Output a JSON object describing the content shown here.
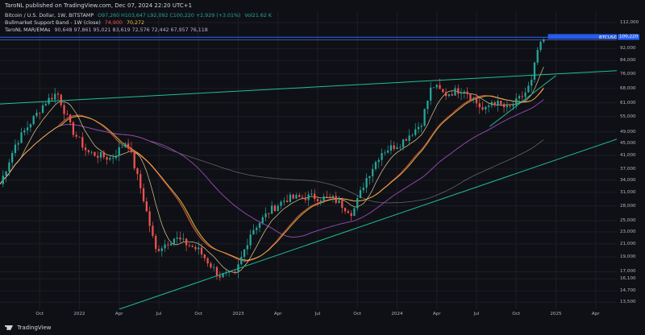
{
  "header": {
    "title": "TaroNL published on TradingView.com, Dec 07, 2024 22:20 UTC+1"
  },
  "legend": {
    "symbol_line": "Bitcoin / U.S. Dollar, 1W, BITSTAMP",
    "ohlc": "O97,260  H103,647  L92,092  C100,220  +2,929 (+3.01%)",
    "vol": "Vol21.62 K",
    "indicator1_name": "Bullmarket Support Band - 1W (close)",
    "indicator1_v1": "74,900",
    "indicator1_v2": "70,272",
    "indicator2_name": "TaroNL MAR/EMAs",
    "indicator2_values": "90,648  97,861  95,021  83,619  72,576  72,442  67,957  76,118"
  },
  "footer": {
    "brand": "TradingView",
    "symbol_tag": "BTCUSD",
    "price_tag": "100,220"
  },
  "colors": {
    "background": "#0f1015",
    "up": "#26a69a",
    "down": "#ef5350",
    "trendline": "#1fbf9a",
    "ma_purple": "#8e44ad",
    "band_fill": "#6b5f1f",
    "price_blue": "#2962ff"
  },
  "chart_data": {
    "type": "candlestick",
    "scale": "log",
    "y_ticks": [
      "112,000",
      "100,000",
      "92,000",
      "84,000",
      "76,000",
      "68,000",
      "61,000",
      "55,000",
      "49,000",
      "45,000",
      "41,000",
      "37,000",
      "34,000",
      "31,000",
      "28,000",
      "25,000",
      "23,000",
      "21,000",
      "19,000",
      "17,000",
      "16,100",
      "14,700",
      "13,500"
    ],
    "y_tick_values": [
      112000,
      100000,
      92000,
      84000,
      76000,
      68000,
      61000,
      55000,
      49000,
      45000,
      41000,
      37000,
      34000,
      31000,
      28000,
      25000,
      23000,
      21000,
      19000,
      17000,
      16100,
      14700,
      13500
    ],
    "x_ticks": [
      "Oct",
      "2022",
      "Apr",
      "Jul",
      "Oct",
      "2023",
      "Apr",
      "Jul",
      "Oct",
      "2024",
      "Apr",
      "Jul",
      "Oct",
      "2025",
      "Apr"
    ],
    "ylim": [
      12800,
      122000
    ],
    "last_price": 100220,
    "trendlines": [
      {
        "from": [
          "2021-07",
          60500
        ],
        "to": [
          "2025-06",
          78000
        ]
      },
      {
        "from": [
          "2022-04",
          12800
        ],
        "to": [
          "2025-06",
          47000
        ]
      },
      {
        "from": [
          "2024-08",
          51000
        ],
        "to": [
          "2025-01",
          75000
        ]
      }
    ]
  }
}
